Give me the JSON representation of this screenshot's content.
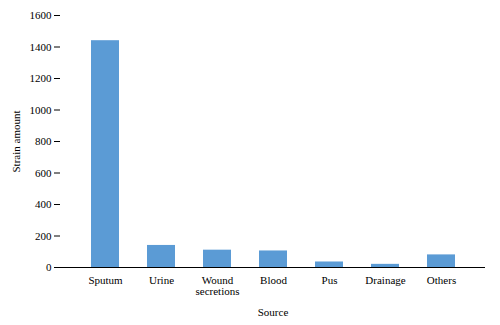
{
  "chart_data": {
    "type": "bar",
    "categories": [
      "Sputum",
      "Urine",
      "Wound\nsecretions",
      "Blood",
      "Pus",
      "Drainage",
      "Others"
    ],
    "values": [
      1440,
      140,
      110,
      105,
      35,
      20,
      80
    ],
    "color": "#5b9bd5",
    "xlabel": "Source",
    "ylabel": "Strain amount",
    "ylim": [
      0,
      1600
    ],
    "yticks": [
      0,
      200,
      400,
      600,
      800,
      1000,
      1200,
      1400,
      1600
    ],
    "grid": false
  }
}
